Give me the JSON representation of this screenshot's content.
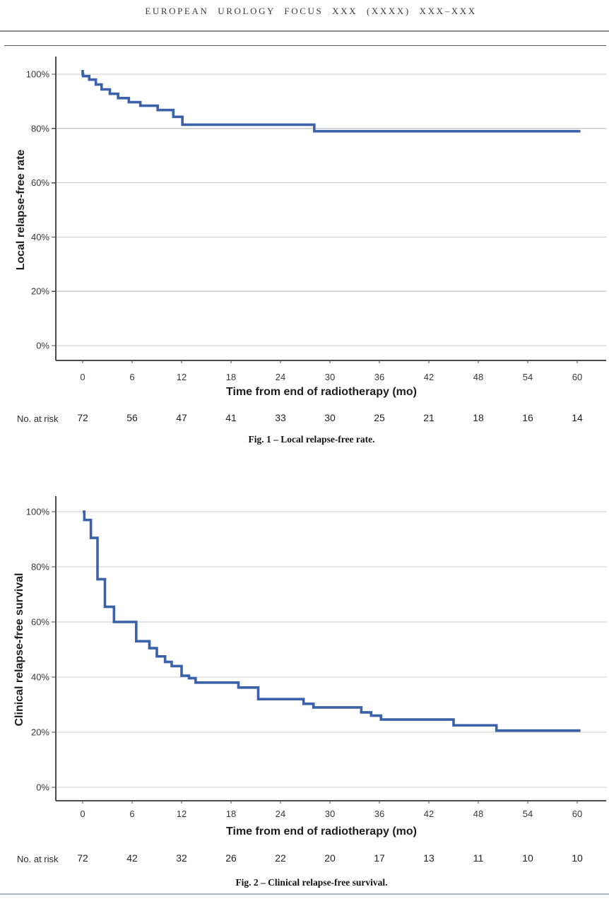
{
  "page": {
    "journal_header": "EUROPEAN UROLOGY FOCUS XXX (XXXX) XXX–XXX"
  },
  "chart_data": [
    {
      "type": "line",
      "subtype": "kaplan-meier-step",
      "title": "Fig. 1 – Local relapse-free rate.",
      "ylabel": "Local relapse-free rate",
      "xlabel": "Time from end of radiotherapy (mo)",
      "line_color": "#3b61aa",
      "xlim": [
        0,
        63.5
      ],
      "ylim": [
        0,
        100
      ],
      "grid": "horizontal",
      "legend": "none",
      "xticks": [
        0,
        6,
        12,
        18,
        24,
        30,
        36,
        42,
        48,
        54,
        60
      ],
      "ytick_values": [
        0,
        20,
        40,
        60,
        80,
        100
      ],
      "ytick_labels": [
        "0%",
        "20%",
        "40%",
        "60%",
        "80%",
        "100%"
      ],
      "steps_time_mo_vs_pct": [
        [
          0,
          100
        ],
        [
          0.05,
          99.3
        ],
        [
          0.8,
          98.0
        ],
        [
          1.6,
          96.2
        ],
        [
          2.3,
          94.4
        ],
        [
          3.3,
          92.8
        ],
        [
          4.3,
          91.2
        ],
        [
          5.6,
          89.7
        ],
        [
          7.0,
          88.4
        ],
        [
          9.1,
          86.8
        ],
        [
          11.0,
          84.3
        ],
        [
          12.1,
          81.4
        ],
        [
          28.1,
          79.0
        ],
        [
          60.4,
          79.0
        ]
      ],
      "risk_label": "No. at risk",
      "risk_counts": [
        72,
        56,
        47,
        41,
        33,
        30,
        25,
        21,
        18,
        16,
        14
      ]
    },
    {
      "type": "line",
      "subtype": "kaplan-meier-step",
      "title": "Fig. 2 – Clinical relapse-free survival.",
      "ylabel": "Clinical relapse-free survival",
      "xlabel": "Time from end of radiotherapy (mo)",
      "line_color": "#3b61aa",
      "xlim": [
        0,
        63.5
      ],
      "ylim": [
        0,
        100
      ],
      "grid": "horizontal",
      "legend": "none",
      "xticks": [
        0,
        6,
        12,
        18,
        24,
        30,
        36,
        42,
        48,
        54,
        60
      ],
      "ytick_values": [
        0,
        20,
        40,
        60,
        80,
        100
      ],
      "ytick_labels": [
        "0%",
        "20%",
        "40%",
        "60%",
        "80%",
        "100%"
      ],
      "steps_time_mo_vs_pct": [
        [
          0,
          100
        ],
        [
          0.2,
          97.0
        ],
        [
          1.0,
          90.5
        ],
        [
          1.8,
          75.5
        ],
        [
          2.7,
          65.5
        ],
        [
          3.8,
          60.0
        ],
        [
          6.5,
          53.0
        ],
        [
          8.1,
          50.5
        ],
        [
          9.0,
          47.5
        ],
        [
          10.0,
          45.5
        ],
        [
          10.8,
          44.0
        ],
        [
          12.0,
          40.5
        ],
        [
          12.9,
          39.6
        ],
        [
          13.7,
          38.0
        ],
        [
          18.9,
          36.2
        ],
        [
          21.3,
          32.0
        ],
        [
          26.8,
          30.3
        ],
        [
          28.0,
          29.0
        ],
        [
          33.8,
          27.2
        ],
        [
          35.0,
          26.0
        ],
        [
          36.2,
          24.6
        ],
        [
          45.0,
          22.5
        ],
        [
          50.2,
          20.6
        ],
        [
          60.4,
          20.6
        ]
      ],
      "risk_label": "No. at risk",
      "risk_counts": [
        72,
        42,
        32,
        26,
        22,
        20,
        17,
        13,
        11,
        10,
        10
      ]
    }
  ]
}
